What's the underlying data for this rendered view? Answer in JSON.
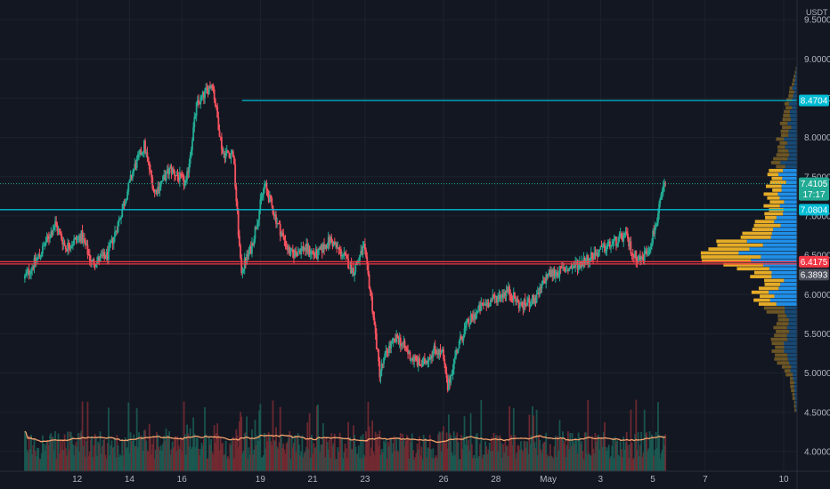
{
  "chart_data": {
    "type": "candlestick",
    "currency": "USDT",
    "ylim": [
      3.75,
      9.75
    ],
    "y_ticks": [
      "9.5000",
      "9.0000",
      "8.5000",
      "8.0000",
      "7.5000",
      "7.0000",
      "6.5000",
      "6.0000",
      "5.5000",
      "5.0000",
      "4.5000",
      "4.0000"
    ],
    "x_ticks": [
      {
        "label": "12",
        "d": 2
      },
      {
        "label": "14",
        "d": 4
      },
      {
        "label": "16",
        "d": 6
      },
      {
        "label": "19",
        "d": 9
      },
      {
        "label": "21",
        "d": 11
      },
      {
        "label": "23",
        "d": 13
      },
      {
        "label": "26",
        "d": 16
      },
      {
        "label": "28",
        "d": 18
      },
      {
        "label": "May",
        "d": 20
      },
      {
        "label": "3",
        "d": 22
      },
      {
        "label": "5",
        "d": 24
      },
      {
        "label": "7",
        "d": 26
      },
      {
        "label": "10",
        "d": 29
      }
    ],
    "price_anchors": [
      [
        0,
        6.2
      ],
      [
        0.6,
        6.5
      ],
      [
        1.2,
        6.9
      ],
      [
        1.6,
        6.6
      ],
      [
        2.2,
        6.75
      ],
      [
        2.6,
        6.4
      ],
      [
        3.2,
        6.5
      ],
      [
        3.6,
        6.9
      ],
      [
        4.2,
        7.6
      ],
      [
        4.6,
        7.9
      ],
      [
        5.0,
        7.3
      ],
      [
        5.6,
        7.6
      ],
      [
        6.2,
        7.4
      ],
      [
        6.6,
        8.4
      ],
      [
        7.2,
        8.7
      ],
      [
        7.6,
        7.8
      ],
      [
        8.0,
        7.8
      ],
      [
        8.3,
        6.3
      ],
      [
        8.7,
        6.6
      ],
      [
        9.2,
        7.4
      ],
      [
        9.7,
        6.9
      ],
      [
        10.2,
        6.5
      ],
      [
        10.7,
        6.6
      ],
      [
        11.2,
        6.5
      ],
      [
        11.7,
        6.7
      ],
      [
        12.2,
        6.5
      ],
      [
        12.6,
        6.3
      ],
      [
        13.0,
        6.6
      ],
      [
        13.3,
        5.9
      ],
      [
        13.6,
        5.0
      ],
      [
        13.9,
        5.3
      ],
      [
        14.3,
        5.45
      ],
      [
        14.8,
        5.2
      ],
      [
        15.2,
        5.1
      ],
      [
        15.7,
        5.3
      ],
      [
        16.0,
        5.25
      ],
      [
        16.2,
        4.8
      ],
      [
        16.5,
        5.25
      ],
      [
        16.9,
        5.6
      ],
      [
        17.5,
        5.85
      ],
      [
        18.0,
        5.95
      ],
      [
        18.5,
        6.05
      ],
      [
        19.0,
        5.85
      ],
      [
        19.6,
        5.95
      ],
      [
        20.0,
        6.25
      ],
      [
        20.5,
        6.3
      ],
      [
        21.0,
        6.35
      ],
      [
        21.5,
        6.45
      ],
      [
        22.0,
        6.55
      ],
      [
        22.5,
        6.65
      ],
      [
        23.0,
        6.75
      ],
      [
        23.3,
        6.5
      ],
      [
        23.6,
        6.45
      ],
      [
        23.9,
        6.6
      ],
      [
        24.2,
        6.95
      ],
      [
        24.4,
        7.3
      ],
      [
        24.5,
        7.41
      ]
    ],
    "last_price": "7.4105",
    "countdown": "17:17",
    "levels": [
      {
        "price": 8.4704,
        "label": "8.4704",
        "color": "#00bcd4",
        "start_d": 8.3
      },
      {
        "price": 7.0804,
        "label": "7.0804",
        "color": "#00bcd4",
        "start_d": -1
      },
      {
        "price": 6.4175,
        "label": "6.4175",
        "color": "#f23645",
        "start_d": -1
      },
      {
        "price": 6.3893,
        "label": "6.3893",
        "color": "#f23645",
        "start_d": -1
      }
    ],
    "volume_profile": {
      "price_min": 4.5,
      "price_max": 8.9,
      "profile_nodes": [
        [
          4.5,
          0.02
        ],
        [
          4.9,
          0.07
        ],
        [
          5.2,
          0.22
        ],
        [
          5.5,
          0.25
        ],
        [
          5.7,
          0.2
        ],
        [
          5.85,
          0.35
        ],
        [
          6.0,
          0.45
        ],
        [
          6.15,
          0.3
        ],
        [
          6.3,
          0.55
        ],
        [
          6.45,
          0.95
        ],
        [
          6.6,
          0.85
        ],
        [
          6.8,
          0.55
        ],
        [
          7.0,
          0.3
        ],
        [
          7.25,
          0.3
        ],
        [
          7.5,
          0.28
        ],
        [
          7.8,
          0.2
        ],
        [
          8.1,
          0.18
        ],
        [
          8.4,
          0.12
        ],
        [
          8.7,
          0.05
        ],
        [
          8.9,
          0.01
        ]
      ],
      "up_color": "#2196f3",
      "down_color": "#f0b429",
      "value_area": [
        5.85,
        7.6
      ]
    },
    "volume_ma_color": "#f5a36c",
    "up_color": "#22ab94",
    "down_color": "#f7525f"
  }
}
